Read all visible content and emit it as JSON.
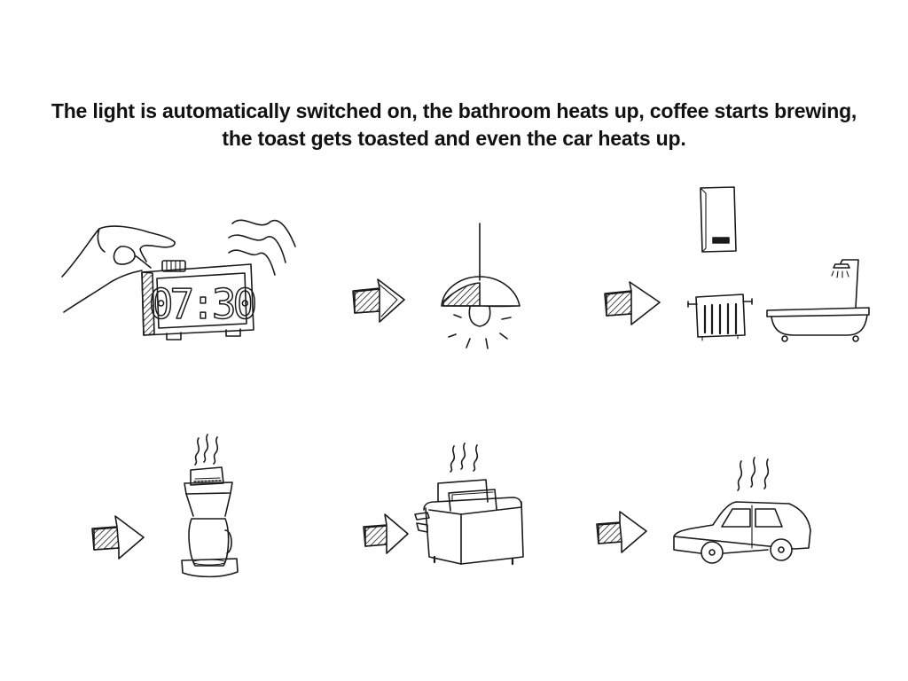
{
  "caption": {
    "line1": "The light is automatically switched on, the bathroom heats up, coffee starts brewing,",
    "line2": "the toast gets toasted and even the car heats up."
  },
  "clock": {
    "display": "07:30"
  },
  "sequence": [
    {
      "name": "alarm-clock"
    },
    {
      "name": "light"
    },
    {
      "name": "bathroom-heating"
    },
    {
      "name": "coffee-machine"
    },
    {
      "name": "toaster"
    },
    {
      "name": "car"
    }
  ]
}
